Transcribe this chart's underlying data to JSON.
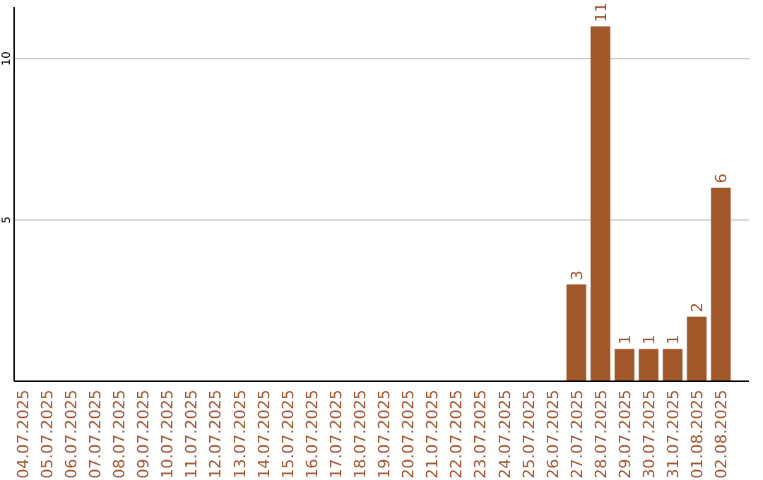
{
  "chart_data": {
    "type": "bar",
    "categories": [
      "04.07.2025",
      "05.07.2025",
      "06.07.2025",
      "07.07.2025",
      "08.07.2025",
      "09.07.2025",
      "10.07.2025",
      "11.07.2025",
      "12.07.2025",
      "13.07.2025",
      "14.07.2025",
      "15.07.2025",
      "16.07.2025",
      "17.07.2025",
      "18.07.2025",
      "19.07.2025",
      "20.07.2025",
      "21.07.2025",
      "22.07.2025",
      "23.07.2025",
      "24.07.2025",
      "25.07.2025",
      "26.07.2025",
      "27.07.2025",
      "28.07.2025",
      "29.07.2025",
      "30.07.2025",
      "31.07.2025",
      "01.08.2025",
      "02.08.2025"
    ],
    "values": [
      0,
      0,
      0,
      0,
      0,
      0,
      0,
      0,
      0,
      0,
      0,
      0,
      0,
      0,
      0,
      0,
      0,
      0,
      0,
      0,
      0,
      0,
      0,
      3,
      11,
      1,
      1,
      1,
      2,
      6
    ],
    "value_labels": [
      null,
      null,
      null,
      null,
      null,
      null,
      null,
      null,
      null,
      null,
      null,
      null,
      null,
      null,
      null,
      null,
      null,
      null,
      null,
      null,
      null,
      null,
      null,
      "3",
      "11",
      "1",
      "1",
      "1",
      "2",
      "6"
    ],
    "color": "#a0582a",
    "ylim": [
      0,
      11.6
    ],
    "yticks": [
      5,
      10
    ],
    "grid": "y"
  }
}
